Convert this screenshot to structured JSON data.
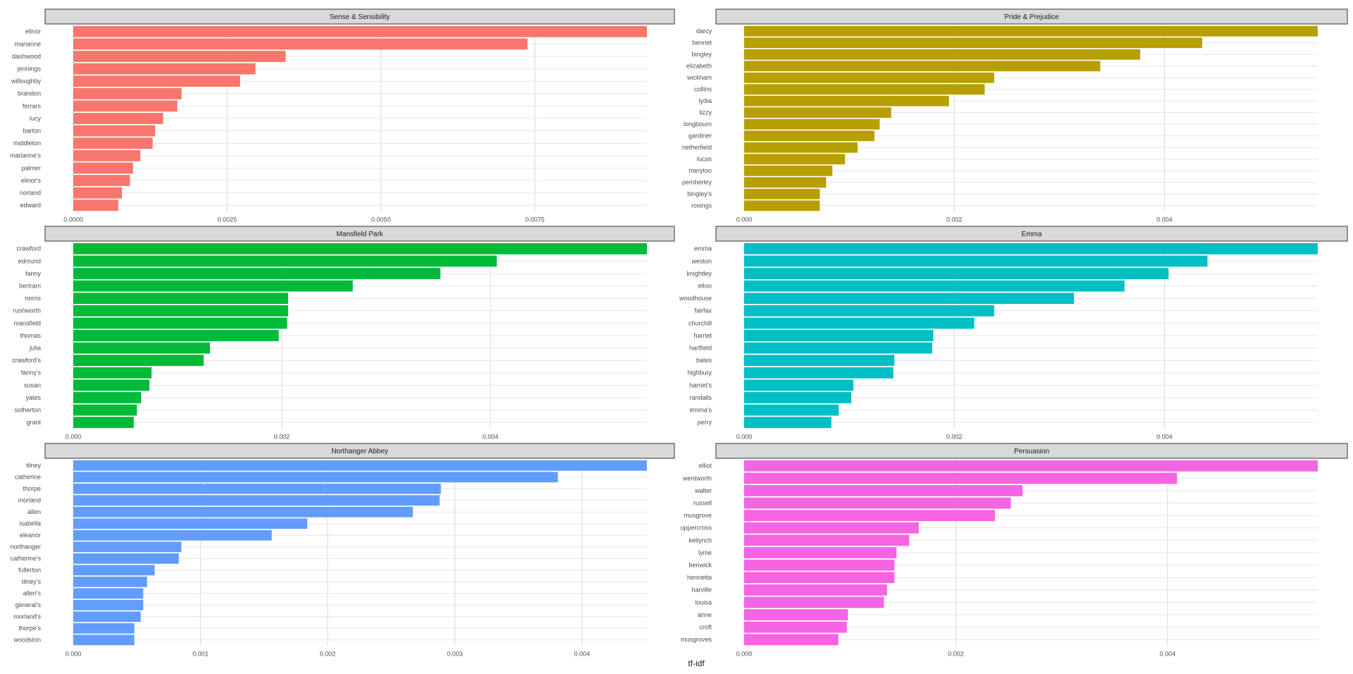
{
  "chart_data": [
    {
      "type": "bar",
      "orientation": "horizontal",
      "title": "Sense & Sensibility",
      "color": "#F8766D",
      "categories": [
        "elinor",
        "marianne",
        "dashwood",
        "jennings",
        "willoughby",
        "brandon",
        "ferrars",
        "lucy",
        "barton",
        "middleton",
        "marianne's",
        "palmer",
        "elinor's",
        "norland",
        "edward"
      ],
      "values": [
        0.00932,
        0.00738,
        0.00345,
        0.00296,
        0.00271,
        0.00176,
        0.00169,
        0.00146,
        0.00133,
        0.00129,
        0.00109,
        0.00097,
        0.00092,
        0.00079,
        0.00073
      ],
      "xticks": [
        0,
        0.0025,
        0.005,
        0.0075
      ],
      "xtick_labels": [
        "0.0000",
        "0.0025",
        "0.0050",
        "0.0075"
      ],
      "xlim": [
        0,
        0.00932
      ]
    },
    {
      "type": "bar",
      "orientation": "horizontal",
      "title": "Pride & Prejudice",
      "color": "#B79F00",
      "categories": [
        "darcy",
        "bennet",
        "bingley",
        "elizabeth",
        "wickham",
        "collins",
        "lydia",
        "lizzy",
        "longbourn",
        "gardiner",
        "netherfield",
        "lucas",
        "meryton",
        "pemberley",
        "bingley's",
        "rosings"
      ],
      "values": [
        0.00546,
        0.00436,
        0.00377,
        0.00339,
        0.00238,
        0.00229,
        0.00195,
        0.0014,
        0.00129,
        0.00124,
        0.00108,
        0.00096,
        0.00084,
        0.00078,
        0.00072,
        0.00072
      ],
      "xticks": [
        0,
        0.002,
        0.004
      ],
      "xtick_labels": [
        "0.000",
        "0.002",
        "0.004"
      ],
      "xlim": [
        0,
        0.00546
      ]
    },
    {
      "type": "bar",
      "orientation": "horizontal",
      "title": "Mansfield Park",
      "color": "#00BA38",
      "categories": [
        "crawford",
        "edmund",
        "fanny",
        "bertram",
        "norris",
        "rushworth",
        "mansfield",
        "thomas",
        "julia",
        "crawford's",
        "fanny's",
        "susan",
        "yates",
        "sotherton",
        "grant"
      ],
      "values": [
        0.0055,
        0.00406,
        0.00352,
        0.00268,
        0.00206,
        0.00206,
        0.00205,
        0.00197,
        0.00131,
        0.00125,
        0.00075,
        0.00073,
        0.00065,
        0.00061,
        0.00058
      ],
      "xticks": [
        0,
        0.002,
        0.004
      ],
      "xtick_labels": [
        "0.000",
        "0.002",
        "0.004"
      ],
      "xlim": [
        0,
        0.0055
      ]
    },
    {
      "type": "bar",
      "orientation": "horizontal",
      "title": "Emma",
      "color": "#00BFC4",
      "categories": [
        "emma",
        "weston",
        "knightley",
        "elton",
        "woodhouse",
        "fairfax",
        "churchill",
        "harriet",
        "hartfield",
        "bates",
        "highbury",
        "harriet's",
        "randalls",
        "emma's",
        "perry"
      ],
      "values": [
        0.00546,
        0.00441,
        0.00404,
        0.00362,
        0.00314,
        0.00238,
        0.00219,
        0.0018,
        0.00179,
        0.00143,
        0.00142,
        0.00104,
        0.00102,
        0.0009,
        0.00083
      ],
      "xticks": [
        0,
        0.002,
        0.004
      ],
      "xtick_labels": [
        "0.000",
        "0.002",
        "0.004"
      ],
      "xlim": [
        0,
        0.00546
      ]
    },
    {
      "type": "bar",
      "orientation": "horizontal",
      "title": "Northanger Abbey",
      "color": "#619CFF",
      "categories": [
        "tilney",
        "catherine",
        "thorpe",
        "morland",
        "allen",
        "isabella",
        "eleanor",
        "northanger",
        "catherine's",
        "fullerton",
        "tilney's",
        "allen's",
        "general's",
        "morland's",
        "thorpe's",
        "woodston"
      ],
      "values": [
        0.00451,
        0.00381,
        0.00289,
        0.00288,
        0.00267,
        0.00184,
        0.00156,
        0.00085,
        0.00083,
        0.00064,
        0.00058,
        0.00055,
        0.00055,
        0.00053,
        0.00048,
        0.00048
      ],
      "xticks": [
        0,
        0.001,
        0.002,
        0.003,
        0.004
      ],
      "xtick_labels": [
        "0.000",
        "0.001",
        "0.002",
        "0.003",
        "0.004"
      ],
      "xlim": [
        0,
        0.00451
      ]
    },
    {
      "type": "bar",
      "orientation": "horizontal",
      "title": "Persuasion",
      "color": "#F564E3",
      "categories": [
        "elliot",
        "wentworth",
        "walter",
        "russell",
        "musgrove",
        "uppercross",
        "kellynch",
        "lyme",
        "benwick",
        "henrietta",
        "harville",
        "louisa",
        "anne",
        "croft",
        "musgroves"
      ],
      "values": [
        0.00542,
        0.00409,
        0.00263,
        0.00252,
        0.00237,
        0.00165,
        0.00156,
        0.00144,
        0.00142,
        0.00142,
        0.00135,
        0.00132,
        0.00098,
        0.00097,
        0.00089
      ],
      "xticks": [
        0,
        0.002,
        0.004
      ],
      "xtick_labels": [
        "0.000",
        "0.002",
        "0.004"
      ],
      "xlim": [
        0,
        0.00542
      ]
    }
  ],
  "xlabel": "tf-idf",
  "grid": true,
  "legend": "none"
}
